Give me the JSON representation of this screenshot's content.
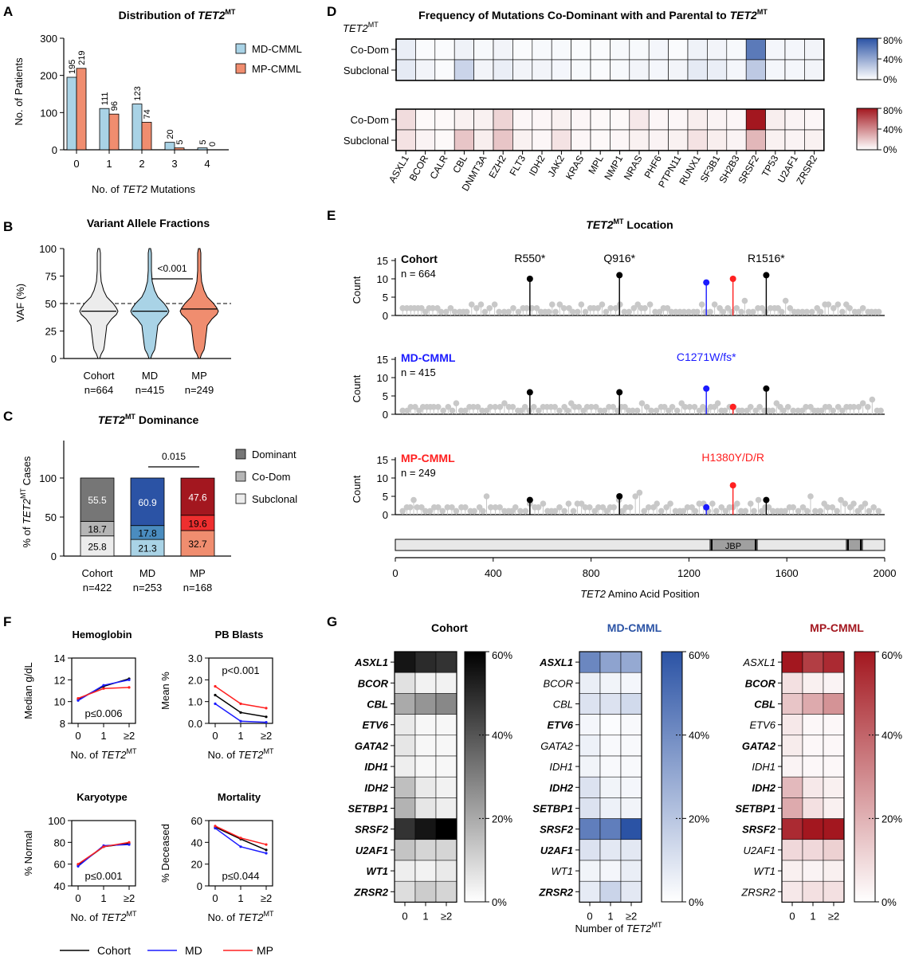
{
  "colors": {
    "md": "#a9d3e6",
    "mp": "#f08d6f",
    "blue": "#2b53a5",
    "red": "#b51e27",
    "cohortLine": "#000000",
    "mdLine": "#1b1bff",
    "mpLine": "#ff2020",
    "lollipopGrey": "#c8c8c8"
  },
  "panelA": {
    "letter": "A",
    "title_main": "Distribution of ",
    "title_italic": "TET2",
    "title_sup": "MT",
    "ylabel": "No. of Patients",
    "xlabel_pre": "No. of ",
    "xlabel_italic": "TET2",
    "xlabel_post": " Mutations",
    "legend": [
      "MD-CMML",
      "MP-CMML"
    ],
    "categories": [
      "0",
      "1",
      "2",
      "3",
      "4"
    ],
    "md_values": [
      195,
      111,
      123,
      20,
      5
    ],
    "mp_values": [
      219,
      96,
      74,
      5,
      0
    ],
    "yticks": [
      "0",
      "100",
      "200",
      "300"
    ],
    "ymax": 300
  },
  "panelB": {
    "letter": "B",
    "title": "Variant Allele Fractions",
    "ylabel": "VAF (%)",
    "yticks": [
      "0",
      "25",
      "50",
      "75",
      "100"
    ],
    "groups": [
      "Cohort",
      "MD",
      "MP"
    ],
    "ns": [
      "n=664",
      "n=415",
      "n=249"
    ],
    "pvalue": "<0.001",
    "medians": [
      43,
      43,
      45
    ]
  },
  "panelC": {
    "letter": "C",
    "title_italic": "TET2",
    "title_sup": "MT",
    "title_post": " Dominance",
    "ylabel_pre": "% of ",
    "ylabel_italic": "TET2",
    "ylabel_sup": "MT",
    "ylabel_post": " Cases",
    "yticks": [
      "0",
      "50",
      "100"
    ],
    "groups": [
      "Cohort",
      "MD",
      "MP"
    ],
    "ns": [
      "n=422",
      "n=253",
      "n=168"
    ],
    "pvalue": "0.015",
    "legend": [
      "Dominant",
      "Co-Dom",
      "Subclonal"
    ],
    "subclonal": [
      25.8,
      21.3,
      32.7
    ],
    "codom": [
      18.7,
      17.8,
      19.6
    ],
    "dominant": [
      55.5,
      60.9,
      47.6
    ],
    "subclonal_labels": [
      "25.8",
      "21.3",
      "32.7"
    ],
    "codom_labels": [
      "18.7",
      "17.8",
      "19.6"
    ],
    "dominant_labels": [
      "55.5",
      "60.9",
      "47.6"
    ]
  },
  "panelD": {
    "letter": "D",
    "title_main": "Frequency of Mutations Co-Dominant with and Parental to ",
    "title_italic": "TET2",
    "title_sup": "MT",
    "row_header_italic": "TET2",
    "row_header_sup": "MT",
    "rows": [
      "Co-Dom",
      "Subclonal"
    ],
    "genes": [
      "ASXL1",
      "BCOR",
      "CALR",
      "CBL",
      "DNMT3A",
      "EZH2",
      "FLT3",
      "IDH2",
      "JAK2",
      "KRAS",
      "MPL",
      "NMP1",
      "NRAS",
      "PHF6",
      "PTPN11",
      "RUNX1",
      "SF3B1",
      "SH2B3",
      "SRSF2",
      "TP53",
      "U2AF1",
      "ZRSR2"
    ],
    "md_codom": [
      0.08,
      0.02,
      0.02,
      0.06,
      0.03,
      0.05,
      0.02,
      0.03,
      0.03,
      0.02,
      0.02,
      0.03,
      0.03,
      0.04,
      0.02,
      0.06,
      0.05,
      0.03,
      0.62,
      0.04,
      0.04,
      0.05
    ],
    "md_subclonal": [
      0.1,
      0.05,
      0.02,
      0.2,
      0.05,
      0.08,
      0.05,
      0.05,
      0.04,
      0.03,
      0.02,
      0.03,
      0.05,
      0.04,
      0.05,
      0.1,
      0.08,
      0.04,
      0.25,
      0.04,
      0.04,
      0.05
    ],
    "mp_codom": [
      0.12,
      0.02,
      0.02,
      0.05,
      0.05,
      0.15,
      0.03,
      0.03,
      0.05,
      0.03,
      0.02,
      0.02,
      0.08,
      0.03,
      0.03,
      0.06,
      0.04,
      0.03,
      0.85,
      0.06,
      0.04,
      0.03
    ],
    "mp_subclonal": [
      0.1,
      0.04,
      0.02,
      0.2,
      0.06,
      0.2,
      0.05,
      0.03,
      0.1,
      0.03,
      0.02,
      0.03,
      0.05,
      0.04,
      0.05,
      0.1,
      0.06,
      0.04,
      0.25,
      0.05,
      0.04,
      0.05
    ],
    "scale_labels": [
      "80%",
      "40%",
      "0%"
    ]
  },
  "panelE": {
    "letter": "E",
    "title_italic": "TET2",
    "title_sup": "MT",
    "title_post": " Location",
    "ylabel": "Count",
    "yticks": [
      "0",
      "5",
      "10",
      "15"
    ],
    "xticks": [
      "0",
      "400",
      "800",
      "1200",
      "1600",
      "2000"
    ],
    "xlabel_italic": "TET2",
    "xlabel_post": " Amino Acid Position",
    "domain_label": "JBP",
    "tracks": [
      {
        "name": "Cohort",
        "n": "n = 664",
        "hotspots": [
          {
            "pos": 550,
            "count": 10,
            "color": "black",
            "label": "R550*"
          },
          {
            "pos": 916,
            "count": 11,
            "color": "black",
            "label": "Q916*"
          },
          {
            "pos": 1271,
            "count": 9,
            "color": "blue",
            "label": ""
          },
          {
            "pos": 1380,
            "count": 10,
            "color": "red",
            "label": ""
          },
          {
            "pos": 1516,
            "count": 11,
            "color": "black",
            "label": "R1516*"
          }
        ]
      },
      {
        "name": "MD-CMML",
        "n": "n = 415",
        "hotspots": [
          {
            "pos": 550,
            "count": 6,
            "color": "black",
            "label": ""
          },
          {
            "pos": 916,
            "count": 6,
            "color": "black",
            "label": ""
          },
          {
            "pos": 1271,
            "count": 7,
            "color": "blue",
            "label": "C1271W/fs*"
          },
          {
            "pos": 1380,
            "count": 2,
            "color": "red",
            "label": ""
          },
          {
            "pos": 1516,
            "count": 7,
            "color": "black",
            "label": ""
          }
        ]
      },
      {
        "name": "MP-CMML",
        "n": "n = 249",
        "hotspots": [
          {
            "pos": 550,
            "count": 4,
            "color": "black",
            "label": ""
          },
          {
            "pos": 916,
            "count": 5,
            "color": "black",
            "label": ""
          },
          {
            "pos": 1271,
            "count": 2,
            "color": "blue",
            "label": ""
          },
          {
            "pos": 1380,
            "count": 8,
            "color": "red",
            "label": "H1380Y/D/R"
          },
          {
            "pos": 1516,
            "count": 4,
            "color": "black",
            "label": ""
          }
        ]
      }
    ]
  },
  "panelF": {
    "letter": "F",
    "charts": [
      {
        "title": "Hemoglobin",
        "ylabel": "Median g/dL",
        "yticks": [
          "8",
          "10",
          "12",
          "14"
        ],
        "ymin": 8,
        "ymax": 14,
        "ptext": "p≤0.006",
        "cohort": [
          10.2,
          11.4,
          12.1
        ],
        "md": [
          10.1,
          11.5,
          12.0
        ],
        "mp": [
          10.3,
          11.2,
          11.3
        ]
      },
      {
        "title": "PB Blasts",
        "ylabel": "Mean %",
        "yticks": [
          "0.0",
          "1.0",
          "2.0",
          "3.0"
        ],
        "ymin": 0,
        "ymax": 3,
        "ptext": "p<0.001",
        "cohort": [
          1.3,
          0.5,
          0.3
        ],
        "md": [
          0.9,
          0.1,
          0.05
        ],
        "mp": [
          1.7,
          0.9,
          0.7
        ]
      },
      {
        "title": "Karyotype",
        "ylabel": "% Normal",
        "yticks": [
          "40",
          "60",
          "80",
          "100"
        ],
        "ymin": 40,
        "ymax": 100,
        "ptext": "p≤0.001",
        "cohort": [
          59,
          76,
          79
        ],
        "md": [
          58,
          77,
          78
        ],
        "mp": [
          60,
          76,
          80
        ]
      },
      {
        "title": "Mortality",
        "ylabel": "% Deceased",
        "yticks": [
          "0",
          "20",
          "40",
          "60"
        ],
        "ymin": 0,
        "ymax": 60,
        "ptext": "p≤0.044",
        "cohort": [
          54,
          43,
          33
        ],
        "md": [
          53,
          36,
          30
        ],
        "mp": [
          55,
          44,
          38
        ]
      }
    ],
    "xticks": [
      "0",
      "1",
      "≥2"
    ],
    "xlabel_pre": "No. of ",
    "xlabel_italic": "TET2",
    "xlabel_sup": "MT",
    "legend": [
      "Cohort",
      "MD",
      "MP"
    ]
  },
  "panelG": {
    "letter": "G",
    "titles": [
      "Cohort",
      "MD-CMML",
      "MP-CMML"
    ],
    "genes": [
      "ASXL1",
      "BCOR",
      "CBL",
      "ETV6",
      "GATA2",
      "IDH1",
      "IDH2",
      "SETBP1",
      "SRSF2",
      "U2AF1",
      "WT1",
      "ZRSR2"
    ],
    "bold_cohort": [
      true,
      true,
      true,
      true,
      true,
      true,
      true,
      true,
      true,
      true,
      true,
      true
    ],
    "bold_md": [
      true,
      false,
      false,
      true,
      false,
      false,
      true,
      true,
      true,
      true,
      false,
      true
    ],
    "bold_mp": [
      false,
      true,
      true,
      false,
      true,
      false,
      true,
      true,
      true,
      false,
      false,
      false
    ],
    "xticks": [
      "0",
      "1",
      "≥2"
    ],
    "scale_labels": [
      "60%",
      "40%",
      "20%",
      "0%"
    ],
    "xlabel_pre": "Number of ",
    "xlabel_italic": "TET2",
    "xlabel_sup": "MT",
    "cohort": [
      [
        0.55,
        0.5,
        0.48
      ],
      [
        0.07,
        0.03,
        0.03
      ],
      [
        0.2,
        0.25,
        0.28
      ],
      [
        0.05,
        0.02,
        0.02
      ],
      [
        0.06,
        0.02,
        0.02
      ],
      [
        0.04,
        0.02,
        0.02
      ],
      [
        0.15,
        0.05,
        0.03
      ],
      [
        0.18,
        0.06,
        0.04
      ],
      [
        0.48,
        0.55,
        0.62
      ],
      [
        0.14,
        0.1,
        0.1
      ],
      [
        0.04,
        0.03,
        0.05
      ],
      [
        0.08,
        0.12,
        0.1
      ]
    ],
    "md": [
      [
        0.42,
        0.32,
        0.3
      ],
      [
        0.06,
        0.04,
        0.03
      ],
      [
        0.1,
        0.1,
        0.13
      ],
      [
        0.03,
        0.01,
        0.02
      ],
      [
        0.05,
        0.02,
        0.02
      ],
      [
        0.04,
        0.02,
        0.02
      ],
      [
        0.1,
        0.04,
        0.03
      ],
      [
        0.1,
        0.05,
        0.04
      ],
      [
        0.45,
        0.45,
        0.6
      ],
      [
        0.1,
        0.08,
        0.08
      ],
      [
        0.04,
        0.03,
        0.06
      ],
      [
        0.07,
        0.15,
        0.08
      ]
    ],
    "mp": [
      [
        0.6,
        0.5,
        0.55
      ],
      [
        0.08,
        0.04,
        0.03
      ],
      [
        0.15,
        0.22,
        0.28
      ],
      [
        0.06,
        0.02,
        0.02
      ],
      [
        0.05,
        0.02,
        0.02
      ],
      [
        0.03,
        0.02,
        0.02
      ],
      [
        0.18,
        0.06,
        0.04
      ],
      [
        0.22,
        0.08,
        0.04
      ],
      [
        0.55,
        0.65,
        0.62
      ],
      [
        0.1,
        0.1,
        0.12
      ],
      [
        0.04,
        0.03,
        0.04
      ],
      [
        0.06,
        0.08,
        0.08
      ]
    ]
  }
}
